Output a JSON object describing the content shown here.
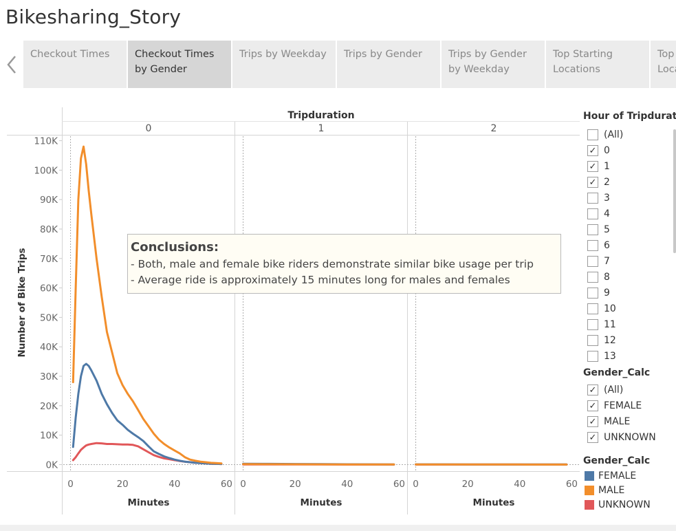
{
  "story_title": "Bikesharing_Story",
  "tabs": [
    {
      "label": "Checkout Times"
    },
    {
      "label": "Checkout Times by Gender"
    },
    {
      "label": "Trips by Weekday"
    },
    {
      "label": "Trips by Gender"
    },
    {
      "label": "Trips by Gender by Weekday"
    },
    {
      "label": "Top Starting Locations"
    },
    {
      "label": "Top Starting Locations"
    }
  ],
  "active_tab": 1,
  "callout": {
    "title": "Conclusions:",
    "lines": [
      "- Both, male and female bike riders demonstrate similar bike usage per trip",
      "- Average ride is approximately 15 minutes long for males and females"
    ]
  },
  "filters": {
    "hour": {
      "title": "Hour of Tripduration",
      "items": [
        {
          "label": "(All)",
          "checked": false
        },
        {
          "label": "0",
          "checked": true
        },
        {
          "label": "1",
          "checked": true
        },
        {
          "label": "2",
          "checked": true
        },
        {
          "label": "3",
          "checked": false
        },
        {
          "label": "4",
          "checked": false
        },
        {
          "label": "5",
          "checked": false
        },
        {
          "label": "6",
          "checked": false
        },
        {
          "label": "7",
          "checked": false
        },
        {
          "label": "8",
          "checked": false
        },
        {
          "label": "9",
          "checked": false
        },
        {
          "label": "10",
          "checked": false
        },
        {
          "label": "11",
          "checked": false
        },
        {
          "label": "12",
          "checked": false
        },
        {
          "label": "13",
          "checked": false
        }
      ]
    },
    "gender": {
      "title": "Gender_Calc",
      "items": [
        {
          "label": "(All)",
          "checked": true
        },
        {
          "label": "FEMALE",
          "checked": true
        },
        {
          "label": "MALE",
          "checked": true
        },
        {
          "label": "UNKNOWN",
          "checked": true
        }
      ]
    }
  },
  "legend": {
    "title": "Gender_Calc",
    "items": [
      {
        "label": "FEMALE",
        "color": "#4e79a7"
      },
      {
        "label": "MALE",
        "color": "#f28e2b"
      },
      {
        "label": "UNKNOWN",
        "color": "#e15759"
      }
    ]
  },
  "chart_data": {
    "type": "line",
    "column_header": "Tripduration",
    "panels": [
      "0",
      "1",
      "2"
    ],
    "xlabel": "Minutes",
    "ylabel": "Number of Bike Trips",
    "x_ticks": [
      0,
      20,
      40,
      60
    ],
    "xlim": [
      -2,
      62
    ],
    "y_ticks": [
      0,
      10000,
      20000,
      30000,
      40000,
      50000,
      60000,
      70000,
      80000,
      90000,
      100000,
      110000
    ],
    "y_tick_labels": [
      "0K",
      "10K",
      "20K",
      "30K",
      "40K",
      "50K",
      "60K",
      "70K",
      "80K",
      "90K",
      "100K",
      "110K"
    ],
    "ylim": [
      -2000,
      112000
    ],
    "series": [
      {
        "name": "FEMALE",
        "color": "#4e79a7",
        "panels": [
          {
            "x": [
              1,
              2,
              3,
              4,
              5,
              6,
              7,
              8,
              10,
              12,
              14,
              16,
              18,
              20,
              22,
              24,
              26,
              28,
              30,
              32,
              34,
              36,
              38,
              40,
              42,
              44,
              46,
              48,
              50,
              52,
              54,
              56,
              58
            ],
            "y": [
              6000,
              16000,
              24000,
              30000,
              33500,
              34200,
              33500,
              32000,
              28500,
              24000,
              20500,
              17500,
              15000,
              13500,
              11800,
              10500,
              9300,
              8000,
              6200,
              4500,
              3600,
              2800,
              2200,
              1700,
              1300,
              1000,
              800,
              600,
              500,
              400,
              300,
              250,
              200
            ]
          },
          {
            "x": [
              0,
              10,
              20,
              30,
              40,
              50,
              58
            ],
            "y": [
              300,
              250,
              200,
              150,
              100,
              80,
              60
            ]
          },
          {
            "x": [
              0,
              10,
              20,
              30,
              40,
              50,
              58
            ],
            "y": [
              80,
              70,
              60,
              50,
              40,
              30,
              25
            ]
          }
        ]
      },
      {
        "name": "MALE",
        "color": "#f28e2b",
        "panels": [
          {
            "x": [
              1,
              2,
              3,
              4,
              5,
              6,
              7,
              8,
              10,
              12,
              14,
              16,
              18,
              20,
              22,
              24,
              26,
              28,
              30,
              32,
              34,
              36,
              38,
              40,
              42,
              44,
              46,
              48,
              50,
              52,
              54,
              56,
              58
            ],
            "y": [
              28000,
              60000,
              90000,
              104000,
              108000,
              102000,
              93000,
              85000,
              70000,
              57000,
              45000,
              38000,
              31000,
              27000,
              24000,
              21500,
              18500,
              15500,
              13000,
              10500,
              8500,
              7000,
              5800,
              4800,
              3800,
              2500,
              1700,
              1300,
              1000,
              800,
              600,
              500,
              400
            ]
          },
          {
            "x": [
              0,
              10,
              20,
              30,
              40,
              50,
              58
            ],
            "y": [
              150,
              120,
              100,
              80,
              60,
              50,
              40
            ]
          },
          {
            "x": [
              0,
              10,
              20,
              30,
              40,
              50,
              58
            ],
            "y": [
              50,
              40,
              35,
              30,
              25,
              20,
              15
            ]
          }
        ]
      },
      {
        "name": "UNKNOWN",
        "color": "#e15759",
        "panels": [
          {
            "x": [
              1,
              2,
              3,
              4,
              5,
              6,
              7,
              8,
              10,
              12,
              14,
              16,
              18,
              20,
              22,
              24,
              26,
              28,
              30,
              32,
              34,
              36,
              38,
              40,
              42,
              44,
              46,
              48,
              50,
              52,
              54,
              56,
              58
            ],
            "y": [
              1500,
              2500,
              3800,
              5000,
              5800,
              6500,
              6800,
              7000,
              7300,
              7200,
              7000,
              7000,
              6900,
              6800,
              6800,
              6700,
              6200,
              5200,
              4200,
              3200,
              2600,
              2100,
              1800,
              1500,
              1200,
              1000,
              800,
              600,
              500,
              400,
              300,
              250,
              200
            ]
          },
          {
            "x": [
              0,
              10,
              20,
              30,
              40,
              50,
              58
            ],
            "y": [
              40,
              35,
              30,
              25,
              20,
              15,
              10
            ]
          },
          {
            "x": [
              0,
              10,
              20,
              30,
              40,
              50,
              58
            ],
            "y": [
              15,
              12,
              10,
              8,
              6,
              5,
              4
            ]
          }
        ]
      }
    ]
  }
}
